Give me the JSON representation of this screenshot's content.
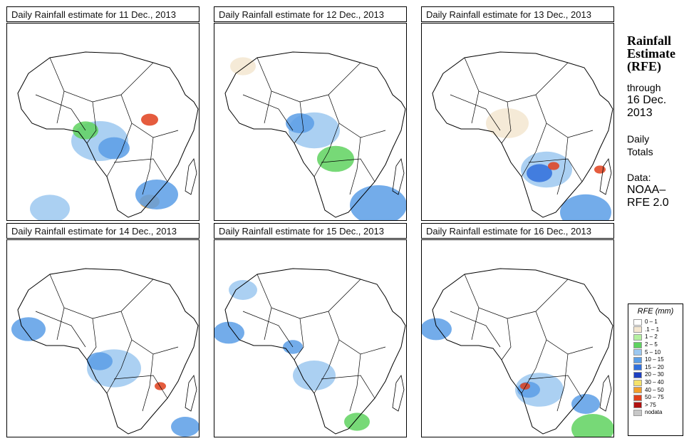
{
  "panels": [
    {
      "title": "Daily Rainfall estimate for  11 Dec., 2013"
    },
    {
      "title": "Daily Rainfall estimate for  12 Dec., 2013"
    },
    {
      "title": "Daily Rainfall estimate for  13 Dec., 2013"
    },
    {
      "title": "Daily Rainfall estimate for  14 Dec., 2013"
    },
    {
      "title": "Daily Rainfall estimate for  15 Dec., 2013"
    },
    {
      "title": "Daily Rainfall estimate for  16 Dec., 2013"
    }
  ],
  "side": {
    "title_line1": "Rainfall",
    "title_line2": "Estimate",
    "title_line3": "(RFE)",
    "through": "through",
    "date_line1": "16 Dec.",
    "date_line2": "2013",
    "daily_line1": "Daily",
    "daily_line2": "Totals",
    "data_label": "Data:",
    "source_line1": "NOAA–",
    "source_line2": "RFE 2.0"
  },
  "legend": {
    "title": "RFE (mm)",
    "classes": [
      {
        "label": "0 – 1",
        "color": "#ffffff"
      },
      {
        "label": ".1 – 1",
        "color": "#f3e6d0"
      },
      {
        "label": "1 – 2",
        "color": "#b4f0a0"
      },
      {
        "label": "2 – 5",
        "color": "#5fd25f"
      },
      {
        "label": "5 – 10",
        "color": "#9cc8f0"
      },
      {
        "label": "10 – 15",
        "color": "#5a9ee6"
      },
      {
        "label": "15 – 20",
        "color": "#2f6fdc"
      },
      {
        "label": "20 – 30",
        "color": "#1c3fc0"
      },
      {
        "label": "30 – 40",
        "color": "#f5e26a"
      },
      {
        "label": "40 – 50",
        "color": "#f2a02c"
      },
      {
        "label": "50 – 75",
        "color": "#e0401c"
      },
      {
        "label": "> 75",
        "color": "#b01010"
      },
      {
        "label": "nodata",
        "color": "#c8c8c8"
      }
    ]
  }
}
